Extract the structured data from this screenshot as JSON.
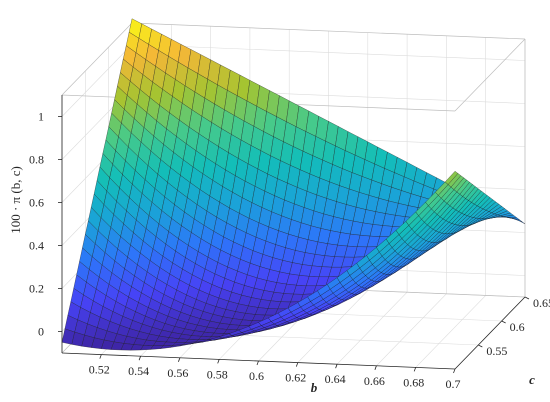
{
  "chart_data": {
    "type": "surface",
    "title": "",
    "xlabel": "b",
    "ylabel": "c",
    "zlabel": "100 · π (b, c)",
    "x_range": [
      0.5,
      0.7
    ],
    "y_range": [
      0.5,
      0.65
    ],
    "z_range": [
      -0.1,
      1.1
    ],
    "x_ticks": [
      "0.52",
      "0.54",
      "0.56",
      "0.58",
      "0.6",
      "0.62",
      "0.64",
      "0.66",
      "0.68",
      "0.7"
    ],
    "y_ticks": [
      "0.55",
      "0.6",
      "0.65"
    ],
    "z_ticks": [
      "0",
      "0.2",
      "0.4",
      "0.6",
      "0.8",
      "1"
    ],
    "grid": true,
    "colormap": [
      "#3e26a8",
      "#4743f6",
      "#2d76f9",
      "#1aa4d7",
      "#13beb8",
      "#47ca8a",
      "#a5c431",
      "#f4b737",
      "#f9fb15"
    ],
    "surface_samples": [
      {
        "b": 0.5,
        "c": 0.5,
        "z": -0.05
      },
      {
        "b": 0.5,
        "c": 0.65,
        "z": 1.12
      },
      {
        "b": 0.6,
        "c": 0.5,
        "z": 0.08
      },
      {
        "b": 0.6,
        "c": 0.575,
        "z": 0.12
      },
      {
        "b": 0.7,
        "c": 0.5,
        "z": 0.82
      },
      {
        "b": 0.7,
        "c": 0.65,
        "z": 0.24
      }
    ]
  }
}
